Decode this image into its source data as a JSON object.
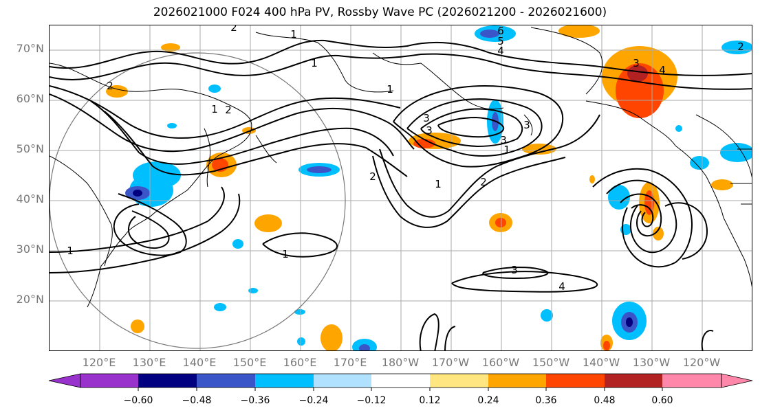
{
  "title": "2026021000 F024 400 hPa PV, Rossby Wave PC (2026021200 - 2026021600)",
  "lat_labels": [
    "70°N",
    "60°N",
    "50°N",
    "40°N",
    "30°N",
    "20°N"
  ],
  "lon_labels": [
    "120°E",
    "130°E",
    "140°E",
    "150°E",
    "160°E",
    "170°E",
    "180°W",
    "170°W",
    "160°W",
    "150°W",
    "140°W",
    "130°W",
    "120°W"
  ],
  "colorbar": {
    "tick_labels": [
      "−0.60",
      "−0.48",
      "−0.36",
      "−0.24",
      "−0.12",
      "0.12",
      "0.24",
      "0.36",
      "0.48",
      "0.60"
    ],
    "colors": [
      "#9932cc",
      "#000080",
      "#3a55c8",
      "#00bfff",
      "#b0e2ff",
      "#ffffff",
      "#ffe680",
      "#ffa500",
      "#ff4500",
      "#b22222",
      "#ff88aa"
    ]
  },
  "contour_labels": [
    "2",
    "1",
    "1",
    "1",
    "6",
    "5",
    "4",
    "3",
    "4",
    "2",
    "2",
    "2",
    "2",
    "3",
    "3",
    "3",
    "3",
    "2",
    "1",
    "1",
    "1",
    "1",
    "1",
    "3",
    "4"
  ]
}
